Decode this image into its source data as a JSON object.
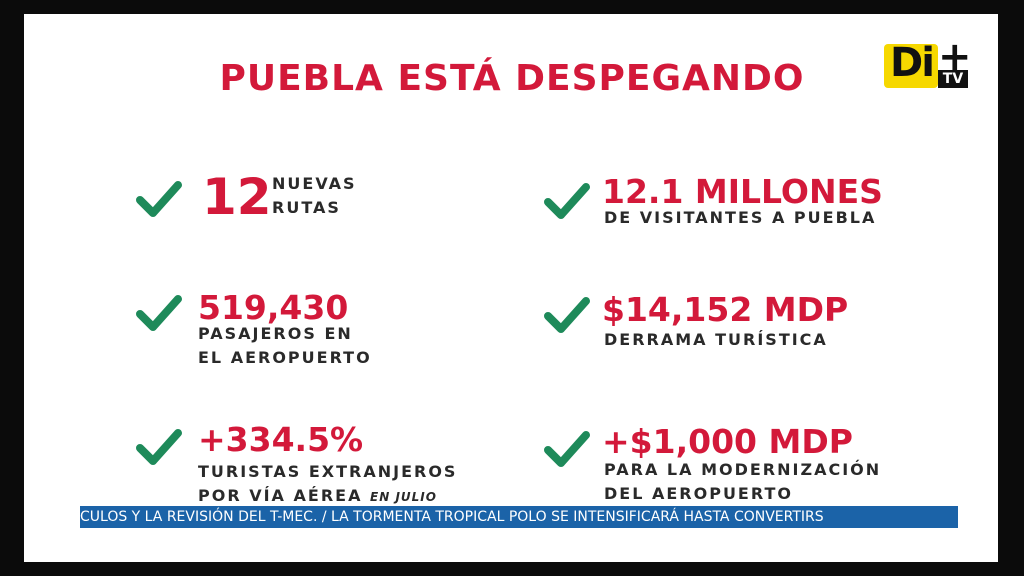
{
  "title": "PUEBLA ESTÁ DESPEGANDO",
  "logo": {
    "di": "Di",
    "plus": "+",
    "tv": "TV"
  },
  "stats": {
    "rutas": {
      "number": "12",
      "line1": "NUEVAS",
      "line2": "RUTAS"
    },
    "visitantes": {
      "number": "12.1 MILLONES",
      "line1": "DE VISITANTES A PUEBLA"
    },
    "pasajeros": {
      "number": "519,430",
      "line1": "PASAJEROS EN",
      "line2": "EL AEROPUERTO"
    },
    "derrama": {
      "number": "$14,152 MDP",
      "line1": "DERRAMA TURÍSTICA"
    },
    "turistas": {
      "number": "+334.5%",
      "line1": "TURISTAS EXTRANJEROS",
      "line2": "POR VÍA AÉREA",
      "note": "EN JULIO"
    },
    "modernizacion": {
      "number": "+$1,000 MDP",
      "line1": "PARA LA MODERNIZACIÓN",
      "line2": "DEL AEROPUERTO"
    }
  },
  "ticker": "CULOS Y LA REVISIÓN DEL T-MEC. / LA TORMENTA TROPICAL POLO SE INTENSIFICARÁ HASTA CONVERTIRS",
  "colors": {
    "accent": "#d3193a",
    "check": "#1e8a5a",
    "ticker_bg": "#1b63a8"
  }
}
